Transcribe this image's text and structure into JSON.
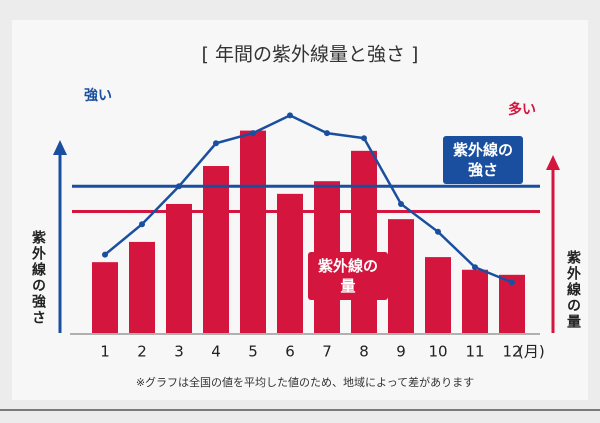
{
  "chart_data": {
    "type": "bar_line",
    "title": "[ 年間の紫外線量と強さ ]",
    "y_high_label": "強い",
    "y2_high_label": "多い",
    "ylabel": "紫外線の強さ",
    "y2label": "紫外線の量",
    "categories": [
      "1",
      "2",
      "3",
      "4",
      "5",
      "6",
      "7",
      "8",
      "9",
      "10",
      "11",
      "12"
    ],
    "x_unit": "(月)",
    "ylim": [
      0,
      100
    ],
    "y2lim": [
      0,
      100
    ],
    "series": [
      {
        "name": "紫外線の量",
        "type": "bar",
        "axis": "y2",
        "color": "#d4163f",
        "values": [
          28,
          36,
          51,
          66,
          80,
          55,
          60,
          72,
          45,
          30,
          25,
          23
        ]
      },
      {
        "name": "紫外線の強さ",
        "type": "line",
        "axis": "y",
        "color": "#1a4fa0",
        "values": [
          31,
          43,
          58,
          75,
          79,
          86,
          79,
          77,
          51,
          40,
          26,
          20
        ]
      }
    ],
    "reference_lines": [
      {
        "axis": "y",
        "value": 58,
        "color": "#1a4fa0"
      },
      {
        "axis": "y2",
        "value": 48,
        "color": "#d4163f"
      }
    ],
    "footnote": "※グラフは全国の値を平均した値のため、地域によって差があります"
  }
}
